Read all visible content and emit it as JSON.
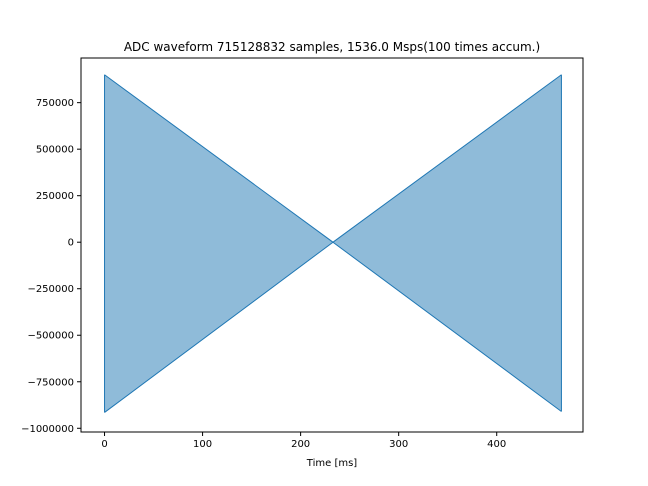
{
  "chart_data": {
    "type": "area",
    "title": "ADC waveform 715128832 samples, 1536.0 Msps(100 times accum.)",
    "xlabel": "Time [ms]",
    "ylabel": "",
    "xlim": [
      -24,
      488
    ],
    "ylim": [
      -1020000,
      990000
    ],
    "x_ticks": [
      0,
      100,
      200,
      300,
      400
    ],
    "x_tick_labels": [
      "0",
      "100",
      "200",
      "300",
      "400"
    ],
    "y_ticks": [
      750000,
      500000,
      250000,
      0,
      -250000,
      -500000,
      -750000,
      -1000000
    ],
    "y_tick_labels": [
      "750000",
      "500000",
      "250000",
      "0",
      "−250000",
      "−500000",
      "−750000",
      "−1000000"
    ],
    "grid": false,
    "series": [
      {
        "upper": {
          "x": [
            0,
            233,
            466
          ],
          "y": [
            900000,
            0,
            900000
          ]
        },
        "lower": {
          "x": [
            0,
            233,
            466
          ],
          "y": [
            -915000,
            0,
            -910000
          ]
        },
        "edges": {
          "x": [
            0,
            466
          ],
          "upper_y": [
            900000,
            900000
          ],
          "lower_y": [
            -915000,
            -910000
          ]
        },
        "fill_color": "#8fbbd9",
        "line_color": "#1f77b4"
      }
    ]
  }
}
